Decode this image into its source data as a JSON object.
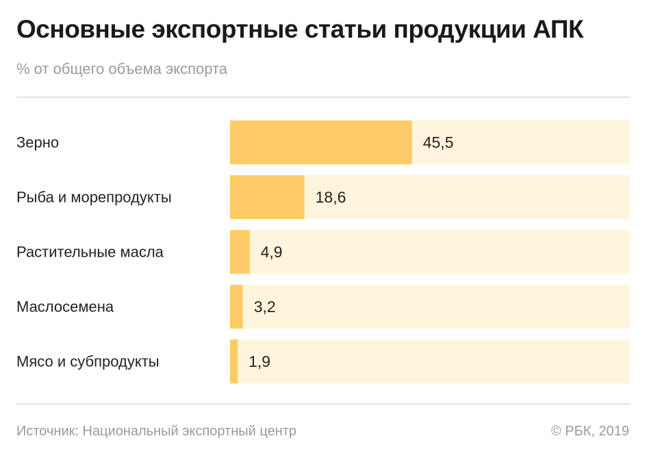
{
  "header": {
    "title": "Основные экспортные статьи продукции АПК",
    "subtitle": "% от общего объема экспорта"
  },
  "footer": {
    "source": "Источник: Национальный экспортный центр",
    "copyright": "© РБК, 2019"
  },
  "colors": {
    "bar": "#ffcb66",
    "track": "#fff5dc",
    "label": "#222222"
  },
  "chart_data": {
    "type": "bar",
    "orientation": "horizontal",
    "categories": [
      "Зерно",
      "Рыба и морепродукты",
      "Растительные масла",
      "Маслосемена",
      "Мясо и субпродукты"
    ],
    "values": [
      45.5,
      18.6,
      4.9,
      3.2,
      1.9
    ],
    "value_labels": [
      "45,5",
      "18,6",
      "4,9",
      "3,2",
      "1,9"
    ],
    "xlim": [
      0,
      100
    ],
    "grid": false,
    "legend": "none"
  }
}
